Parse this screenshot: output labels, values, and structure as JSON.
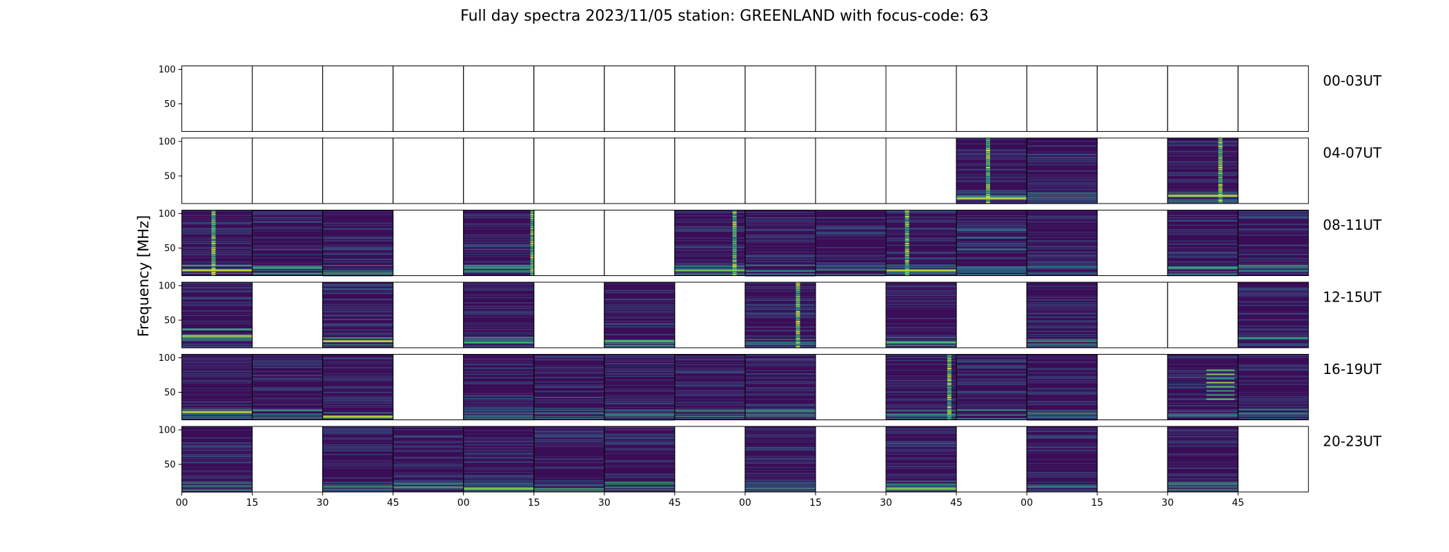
{
  "figure": {
    "title": "Full day spectra 2023/11/05 station: GREENLAND with focus-code: 63",
    "ylabel": "Frequency [MHz]"
  },
  "chart_data": {
    "type": "heatmap",
    "title": "Full day spectra 2023/11/05 station: GREENLAND with focus-code: 63",
    "ylabel": "Frequency [MHz]",
    "xlabel": "",
    "colormap": "viridis",
    "panels_per_row": 16,
    "panel_minutes": 15,
    "ylim": [
      10,
      105
    ],
    "yticks": [
      50,
      100
    ],
    "xtick_labels": [
      "00",
      "15",
      "30",
      "45",
      "00",
      "15",
      "30",
      "45",
      "00",
      "15",
      "30",
      "45",
      "00",
      "15",
      "30",
      "45"
    ],
    "rows": [
      {
        "label": "00-03UT",
        "available": [
          0,
          0,
          0,
          0,
          0,
          0,
          0,
          0,
          0,
          0,
          0,
          0,
          0,
          0,
          0,
          0
        ]
      },
      {
        "label": "04-07UT",
        "available": [
          0,
          0,
          0,
          0,
          0,
          0,
          0,
          0,
          0,
          0,
          0,
          1,
          1,
          0,
          1,
          0
        ]
      },
      {
        "label": "08-11UT",
        "available": [
          1,
          1,
          1,
          0,
          1,
          0,
          0,
          1,
          1,
          1,
          1,
          1,
          1,
          0,
          1,
          1
        ]
      },
      {
        "label": "12-15UT",
        "available": [
          1,
          0,
          1,
          0,
          1,
          0,
          1,
          0,
          1,
          0,
          1,
          0,
          1,
          0,
          0,
          1
        ]
      },
      {
        "label": "16-19UT",
        "available": [
          1,
          1,
          1,
          0,
          1,
          1,
          1,
          1,
          1,
          0,
          1,
          1,
          1,
          0,
          1,
          1
        ]
      },
      {
        "label": "20-23UT",
        "available": [
          1,
          0,
          1,
          1,
          1,
          1,
          1,
          0,
          1,
          0,
          1,
          0,
          1,
          0,
          1,
          0
        ]
      }
    ],
    "features": {
      "1,11": [
        "burst:0.45",
        "band:0.08:0.9"
      ],
      "1,14": [
        "burst:0.75",
        "band:0.12:0.9"
      ],
      "2,0": [
        "burst:0.45",
        "band:0.08:0.9"
      ],
      "2,1": [
        "band:0.12:0.6"
      ],
      "2,4": [
        "burst:0.98",
        "band:0.12:0.6"
      ],
      "2,7": [
        "burst:0.85",
        "band:0.08:0.8"
      ],
      "2,10": [
        "burst:0.3",
        "band:0.08:0.9"
      ],
      "2,11": [
        "band:0.12:0.4",
        "band:0.4:0.35",
        "band:0.58:0.35",
        "band:0.7:0.35"
      ],
      "2,14": [
        "band:0.12:0.6"
      ],
      "3,0": [
        "band:0.18:0.85",
        "band:0.28:0.6"
      ],
      "3,2": [
        "band:0.1:0.9"
      ],
      "3,4": [
        "band:0.08:0.6"
      ],
      "3,6": [
        "band:0.1:0.7"
      ],
      "3,8": [
        "burst:0.75"
      ],
      "3,10": [
        "band:0.08:0.7"
      ],
      "4,0": [
        "band:0.12:0.9"
      ],
      "4,2": [
        "band:0.05:0.9"
      ],
      "4,10": [
        "burst:0.9"
      ],
      "4,14": [
        "lines:0.55"
      ],
      "5,4": [
        "band:0.05:0.8"
      ],
      "5,10": [
        "band:0.05:0.8"
      ]
    }
  }
}
